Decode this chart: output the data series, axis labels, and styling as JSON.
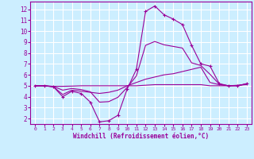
{
  "background_color": "#cceeff",
  "grid_color": "#ffffff",
  "line_color": "#990099",
  "xlabel": "Windchill (Refroidissement éolien,°C)",
  "xlim": [
    -0.5,
    23.5
  ],
  "ylim": [
    1.5,
    12.7
  ],
  "yticks": [
    2,
    3,
    4,
    5,
    6,
    7,
    8,
    9,
    10,
    11,
    12
  ],
  "xticks": [
    0,
    1,
    2,
    3,
    4,
    5,
    6,
    7,
    8,
    9,
    10,
    11,
    12,
    13,
    14,
    15,
    16,
    17,
    18,
    19,
    20,
    21,
    22,
    23
  ],
  "series": [
    {
      "x": [
        0,
        1,
        2,
        3,
        4,
        5,
        6,
        7,
        8,
        9,
        10,
        11,
        12,
        13,
        14,
        15,
        16,
        17,
        18,
        19,
        20,
        21,
        22,
        23
      ],
      "y": [
        5.0,
        5.0,
        4.9,
        4.0,
        4.5,
        4.3,
        3.5,
        1.7,
        1.8,
        2.3,
        4.7,
        6.5,
        11.8,
        12.3,
        11.5,
        11.1,
        10.6,
        8.7,
        7.0,
        6.8,
        5.2,
        5.0,
        5.0,
        5.2
      ],
      "marker": "+"
    },
    {
      "x": [
        0,
        1,
        2,
        3,
        4,
        5,
        6,
        7,
        8,
        9,
        10,
        11,
        12,
        13,
        14,
        15,
        16,
        17,
        18,
        19,
        20,
        21,
        22,
        23
      ],
      "y": [
        5.0,
        5.0,
        4.95,
        4.95,
        4.97,
        5.0,
        5.0,
        5.0,
        5.0,
        5.0,
        5.0,
        5.0,
        5.05,
        5.1,
        5.1,
        5.1,
        5.1,
        5.1,
        5.1,
        5.0,
        5.0,
        5.0,
        5.05,
        5.1
      ],
      "marker": null
    },
    {
      "x": [
        0,
        1,
        2,
        3,
        4,
        5,
        6,
        7,
        8,
        9,
        10,
        11,
        12,
        13,
        14,
        15,
        16,
        17,
        18,
        19,
        20,
        21,
        22,
        23
      ],
      "y": [
        5.0,
        5.0,
        4.9,
        4.2,
        4.6,
        4.5,
        4.4,
        4.3,
        4.4,
        4.6,
        5.0,
        5.3,
        5.6,
        5.8,
        6.0,
        6.1,
        6.3,
        6.5,
        6.7,
        5.3,
        5.1,
        5.0,
        5.0,
        5.2
      ],
      "marker": null
    },
    {
      "x": [
        0,
        1,
        2,
        3,
        4,
        5,
        6,
        7,
        8,
        9,
        10,
        11,
        12,
        13,
        14,
        15,
        16,
        17,
        18,
        19,
        20,
        21,
        22,
        23
      ],
      "y": [
        5.0,
        5.0,
        4.93,
        4.6,
        4.75,
        4.65,
        4.45,
        3.5,
        3.55,
        3.95,
        4.85,
        5.9,
        8.7,
        9.05,
        8.75,
        8.6,
        8.45,
        7.1,
        6.85,
        6.05,
        5.15,
        5.0,
        5.02,
        5.15
      ],
      "marker": null
    }
  ]
}
